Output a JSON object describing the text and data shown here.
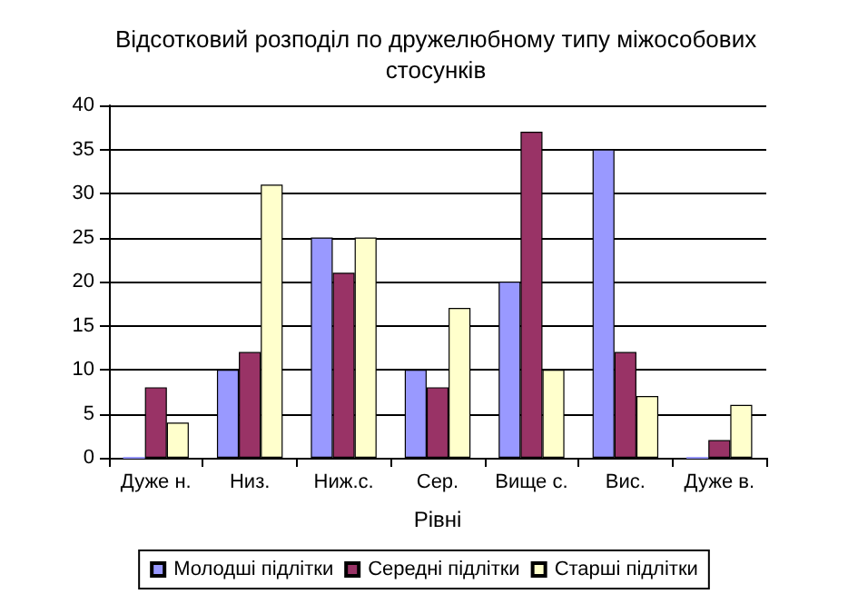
{
  "chart_data": {
    "type": "bar",
    "title": "Відсотковий розподіл по дружелюбному типу міжособових\nстосунків",
    "xlabel": "Рівні",
    "categories": [
      "Дуже н.",
      "Низ.",
      "Ниж.с.",
      "Сер.",
      "Вище с.",
      "Вис.",
      "Дуже в."
    ],
    "series": [
      {
        "name": "Молодші підлітки",
        "color": "#9999ff",
        "values": [
          0,
          10,
          25,
          10,
          20,
          35,
          0
        ]
      },
      {
        "name": "Середні підлітки",
        "color": "#993366",
        "values": [
          8,
          12,
          21,
          8,
          37,
          12,
          2
        ]
      },
      {
        "name": "Старші підлітки",
        "color": "#ffffcc",
        "values": [
          4,
          31,
          25,
          17,
          10,
          7,
          6
        ]
      }
    ],
    "ylim": [
      0,
      40
    ],
    "yticks": [
      0,
      5,
      10,
      15,
      20,
      25,
      30,
      35,
      40
    ],
    "grid": "y",
    "legend": "bottom"
  }
}
